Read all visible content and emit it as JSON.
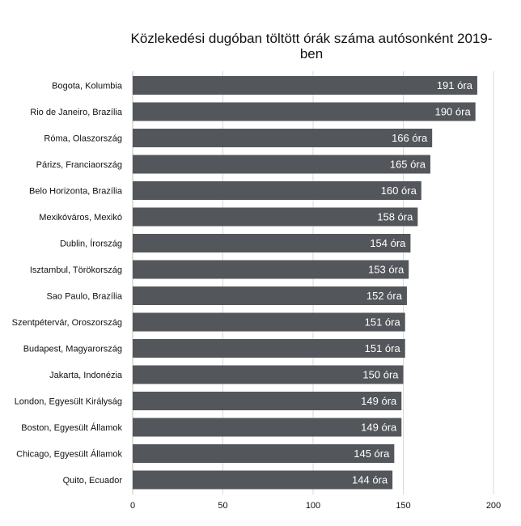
{
  "chart_data": {
    "type": "bar",
    "orientation": "horizontal",
    "title": "Közlekedési dugóban töltött órák száma autósonként 2019-ben",
    "xlabel": "",
    "ylabel": "",
    "xlim": [
      0,
      200
    ],
    "x_ticks": [
      0,
      50,
      100,
      150,
      200
    ],
    "grid": "vertical",
    "categories": [
      "Bogota, Kolumbia",
      "Rio de Janeiro, Brazília",
      "Róma, Olaszország",
      "Párizs, Franciaország",
      "Belo Horizonta, Brazília",
      "Mexikóváros, Mexikó",
      "Dublin, Írország",
      "Isztambul, Törökország",
      "Sao Paulo, Brazília",
      "Szentpétervár, Oroszország",
      "Budapest, Magyarország",
      "Jakarta, Indonézia",
      "London, Egyesült Királyság",
      "Boston, Egyesült Államok",
      "Chicago, Egyesült Államok",
      "Quito, Ecuador"
    ],
    "values": [
      191,
      190,
      166,
      165,
      160,
      158,
      154,
      153,
      152,
      151,
      151,
      150,
      149,
      149,
      145,
      144
    ],
    "value_labels": [
      "191 óra",
      "190 óra",
      "166 óra",
      "165 óra",
      "160 óra",
      "158 óra",
      "154 óra",
      "153 óra",
      "152 óra",
      "151 óra",
      "151 óra",
      "150 óra",
      "149 óra",
      "149 óra",
      "145 óra",
      "144 óra"
    ],
    "colors": {
      "bar": "#53565a",
      "bar_label": "#ffffff",
      "grid": "#d9d9d9",
      "axis_text": "#111111"
    }
  }
}
